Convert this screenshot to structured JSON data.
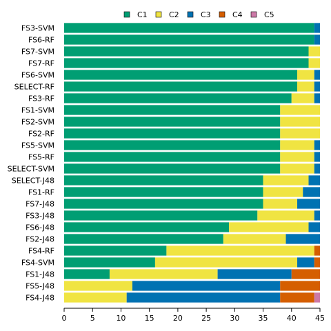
{
  "chart_data": {
    "type": "bar",
    "orientation": "horizontal",
    "stacked": true,
    "title": "",
    "xlabel": "",
    "ylabel": "",
    "xlim": [
      0,
      45
    ],
    "xticks": [
      0,
      5,
      10,
      15,
      20,
      25,
      30,
      35,
      40,
      45
    ],
    "grid": false,
    "legend_position": "top",
    "categories": [
      "FS3-SVM",
      "FS6-RF",
      "FS7-SVM",
      "FS7-RF",
      "FS6-SVM",
      "SELECT-RF",
      "FS3-RF",
      "FS1-SVM",
      "FS2-SVM",
      "FS2-RF",
      "FS5-SVM",
      "FS5-RF",
      "SELECT-SVM",
      "SELECT-J48",
      "FS1-RF",
      "FS7-J48",
      "FS3-J48",
      "FS6-J48",
      "FS2-J48",
      "FS4-RF",
      "FS4-SVM",
      "FS1-J48",
      "FS5-J48",
      "FS4-J48"
    ],
    "series": [
      {
        "name": "C1",
        "color": "#009E73",
        "values": [
          44,
          44,
          43,
          43,
          41,
          41,
          40,
          38,
          38,
          38,
          38,
          38,
          38,
          35,
          35,
          35,
          34,
          29,
          28,
          18,
          16,
          8,
          0,
          0
        ]
      },
      {
        "name": "C2",
        "color": "#F0E442",
        "values": [
          0,
          0,
          2,
          2,
          3,
          3,
          4,
          7,
          7,
          7,
          6,
          6,
          6,
          8,
          7,
          6,
          10,
          14,
          11,
          26,
          25,
          19,
          12,
          11
        ]
      },
      {
        "name": "C3",
        "color": "#0072B2",
        "values": [
          1,
          1,
          0,
          0,
          1,
          1,
          1,
          0,
          0,
          0,
          1,
          1,
          1,
          2,
          3,
          4,
          1,
          2,
          6,
          0,
          3,
          13,
          26,
          27
        ]
      },
      {
        "name": "C4",
        "color": "#D55E00",
        "values": [
          0,
          0,
          0,
          0,
          0,
          0,
          0,
          0,
          0,
          0,
          0,
          0,
          0,
          0,
          0,
          0,
          0,
          0,
          0,
          1,
          1,
          5,
          7,
          6
        ]
      },
      {
        "name": "C5",
        "color": "#CC79A7",
        "values": [
          0,
          0,
          0,
          0,
          0,
          0,
          0,
          0,
          0,
          0,
          0,
          0,
          0,
          0,
          0,
          0,
          0,
          0,
          0,
          0,
          0,
          0,
          0,
          1
        ]
      }
    ]
  }
}
